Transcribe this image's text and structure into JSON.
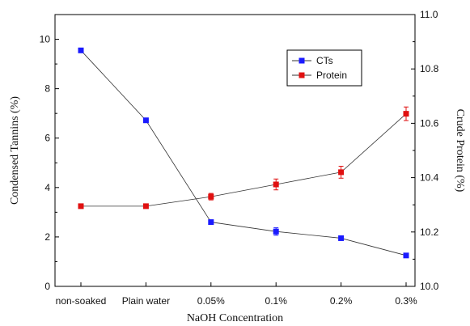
{
  "chart_data": {
    "type": "line",
    "title": "",
    "xlabel": "NaOH Concentration",
    "ylabel": "Condensed Tannins (%)",
    "y2label": "Crude Protein (%)",
    "categories": [
      "non-soaked",
      "Plain water",
      "0.05%",
      "0.1%",
      "0.2%",
      "0.3%"
    ],
    "ylim": [
      0,
      11
    ],
    "y_ticks": [
      0,
      2,
      4,
      6,
      8,
      10
    ],
    "y_tick_labels": [
      "0",
      "2",
      "4",
      "6",
      "8",
      "10"
    ],
    "y2lim": [
      10.0,
      11.0
    ],
    "y2_ticks": [
      10.0,
      10.2,
      10.4,
      10.6,
      10.8,
      11.0
    ],
    "y2_tick_labels": [
      "10.0",
      "10.2",
      "10.4",
      "10.6",
      "10.8",
      "11.0"
    ],
    "legend_position": "top-right",
    "grid": false,
    "series": [
      {
        "name": "CTs",
        "axis": "left",
        "color": "#1a1aff",
        "values": [
          9.55,
          6.72,
          2.6,
          2.22,
          1.95,
          1.25
        ],
        "errors": [
          0,
          0,
          0.05,
          0.15,
          0.08,
          0.05
        ]
      },
      {
        "name": "Protein",
        "axis": "right",
        "color": "#e01010",
        "values": [
          10.295,
          10.295,
          10.33,
          10.375,
          10.42,
          10.635
        ],
        "errors": [
          0,
          0,
          0.012,
          0.02,
          0.022,
          0.025
        ]
      }
    ]
  }
}
